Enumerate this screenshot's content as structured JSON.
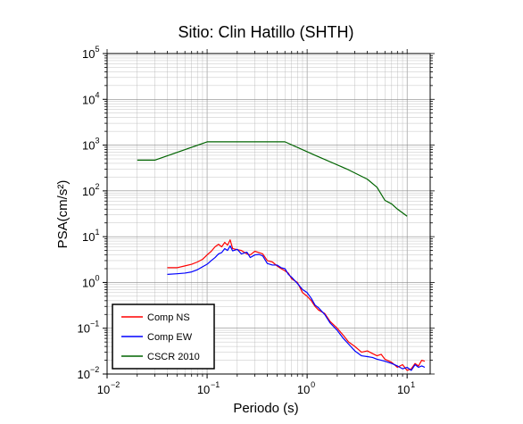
{
  "chart_data": {
    "type": "line",
    "title": "Sitio: Clin Hatillo (SHTH)",
    "xlabel": "Periodo (s)",
    "ylabel": "PSA(cm/s²)",
    "xscale": "log",
    "yscale": "log",
    "xlim": [
      0.01,
      17
    ],
    "ylim": [
      0.01,
      100000
    ],
    "grid": true,
    "legend_position": "bottom-left",
    "x_ticks": [
      {
        "base": "10",
        "exp": "−2",
        "value": 0.01
      },
      {
        "base": "10",
        "exp": "−1",
        "value": 0.1
      },
      {
        "base": "10",
        "exp": "0",
        "value": 1
      },
      {
        "base": "10",
        "exp": "1",
        "value": 10
      }
    ],
    "y_ticks": [
      {
        "base": "10",
        "exp": "−2",
        "value": 0.01
      },
      {
        "base": "10",
        "exp": "−1",
        "value": 0.1
      },
      {
        "base": "10",
        "exp": "0",
        "value": 1
      },
      {
        "base": "10",
        "exp": "1",
        "value": 10
      },
      {
        "base": "10",
        "exp": "2",
        "value": 100
      },
      {
        "base": "10",
        "exp": "3",
        "value": 1000
      },
      {
        "base": "10",
        "exp": "4",
        "value": 10000
      },
      {
        "base": "10",
        "exp": "5",
        "value": 100000
      }
    ],
    "series": [
      {
        "name": "Comp NS",
        "color": "#ff0000",
        "x": [
          0.04,
          0.05,
          0.06,
          0.07,
          0.08,
          0.09,
          0.1,
          0.11,
          0.12,
          0.13,
          0.14,
          0.15,
          0.16,
          0.17,
          0.18,
          0.2,
          0.22,
          0.25,
          0.27,
          0.3,
          0.33,
          0.36,
          0.4,
          0.45,
          0.5,
          0.55,
          0.6,
          0.65,
          0.7,
          0.8,
          0.9,
          1.0,
          1.1,
          1.2,
          1.3,
          1.5,
          1.7,
          2.0,
          2.3,
          2.6,
          3.0,
          3.5,
          4.0,
          4.5,
          5.0,
          5.5,
          6.0,
          7.0,
          8.0,
          9.0,
          10.0,
          11.0,
          12.0,
          13.0,
          14.0,
          15.0
        ],
        "y": [
          2.1,
          2.1,
          2.3,
          2.5,
          2.8,
          3.2,
          4.0,
          4.8,
          6.0,
          6.8,
          6.0,
          7.5,
          6.5,
          8.5,
          5.5,
          5.2,
          5.0,
          4.2,
          4.0,
          4.8,
          4.5,
          4.2,
          3.0,
          2.8,
          2.3,
          2.0,
          1.8,
          1.6,
          1.2,
          1.0,
          0.6,
          0.5,
          0.4,
          0.3,
          0.25,
          0.21,
          0.14,
          0.1,
          0.07,
          0.05,
          0.04,
          0.03,
          0.032,
          0.028,
          0.025,
          0.027,
          0.021,
          0.018,
          0.014,
          0.016,
          0.012,
          0.013,
          0.017,
          0.015,
          0.02,
          0.019
        ]
      },
      {
        "name": "Comp EW",
        "color": "#0000ff",
        "x": [
          0.04,
          0.05,
          0.06,
          0.07,
          0.08,
          0.09,
          0.1,
          0.11,
          0.12,
          0.13,
          0.14,
          0.15,
          0.16,
          0.17,
          0.18,
          0.2,
          0.22,
          0.25,
          0.27,
          0.3,
          0.33,
          0.36,
          0.4,
          0.45,
          0.5,
          0.55,
          0.6,
          0.65,
          0.7,
          0.8,
          0.9,
          1.0,
          1.1,
          1.2,
          1.3,
          1.5,
          1.7,
          2.0,
          2.3,
          2.6,
          3.0,
          3.5,
          4.0,
          4.5,
          5.0,
          5.5,
          6.0,
          7.0,
          8.0,
          9.0,
          10.0,
          11.0,
          12.0,
          13.0,
          14.0,
          15.0
        ],
        "y": [
          1.5,
          1.55,
          1.6,
          1.7,
          1.9,
          2.2,
          2.5,
          3.0,
          3.5,
          4.2,
          4.5,
          5.5,
          5.0,
          6.3,
          4.9,
          5.3,
          4.2,
          4.6,
          3.5,
          4.0,
          4.1,
          3.8,
          2.6,
          2.4,
          2.4,
          2.1,
          2.0,
          1.5,
          1.3,
          0.95,
          0.7,
          0.6,
          0.45,
          0.32,
          0.28,
          0.2,
          0.13,
          0.09,
          0.06,
          0.045,
          0.032,
          0.025,
          0.024,
          0.023,
          0.021,
          0.02,
          0.019,
          0.017,
          0.015,
          0.013,
          0.014,
          0.012,
          0.016,
          0.014,
          0.015,
          0.014
        ]
      },
      {
        "name": "CSCR 2010",
        "color": "#006400",
        "x": [
          0.02,
          0.03,
          0.1,
          0.6,
          1.2,
          2.5,
          4.0,
          5.0,
          6.0,
          7.0,
          8.0,
          10.0
        ],
        "y": [
          470,
          470,
          1180,
          1180,
          600,
          300,
          180,
          120,
          62,
          52,
          40,
          28
        ]
      }
    ]
  }
}
